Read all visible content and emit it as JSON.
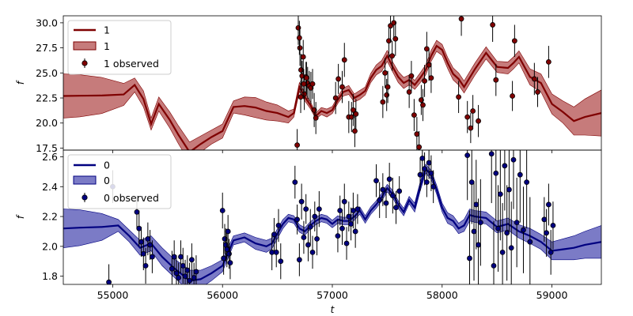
{
  "colors": {
    "top_line": "#7f0000",
    "top_band": "#b85a5a",
    "bottom_line": "#000080",
    "bottom_band": "#5a5ab8",
    "point_edge": "#000000",
    "errorbar": "#000000"
  },
  "chart_data": [
    {
      "type": "line",
      "panel": "top",
      "xlabel": "",
      "ylabel": "f",
      "xlim": [
        54550,
        59450
      ],
      "ylim": [
        17.3,
        30.7
      ],
      "yticks": [
        17.5,
        20.0,
        22.5,
        25.0,
        27.5,
        30.0
      ],
      "ytick_labels": [
        "17.5",
        "20.0",
        "22.5",
        "25.0",
        "27.5",
        "30.0"
      ],
      "legend": {
        "position": "top-left",
        "entries": [
          {
            "kind": "line",
            "label": "1"
          },
          {
            "kind": "band",
            "label": "1"
          },
          {
            "kind": "errorbar",
            "label": "1 observed"
          }
        ]
      },
      "model": {
        "t": [
          54550,
          54700,
          54900,
          55100,
          55200,
          55280,
          55350,
          55420,
          55520,
          55600,
          55700,
          55800,
          55900,
          56000,
          56100,
          56200,
          56300,
          56400,
          56500,
          56600,
          56650,
          56700,
          56750,
          56800,
          56850,
          56900,
          56950,
          57000,
          57050,
          57100,
          57150,
          57200,
          57250,
          57300,
          57350,
          57400,
          57450,
          57500,
          57550,
          57600,
          57650,
          57700,
          57750,
          57800,
          57850,
          57900,
          57950,
          58000,
          58050,
          58100,
          58150,
          58200,
          58300,
          58400,
          58500,
          58600,
          58650,
          58700,
          58800,
          58900,
          59000,
          59100,
          59200,
          59300,
          59450
        ],
        "mean": [
          22.7,
          22.72,
          22.75,
          22.85,
          23.8,
          22.4,
          19.9,
          21.9,
          20.3,
          18.8,
          17.1,
          17.9,
          18.6,
          19.2,
          21.6,
          21.7,
          21.55,
          21.2,
          21.0,
          20.6,
          21.0,
          23.6,
          22.6,
          21.8,
          20.7,
          21.2,
          21.0,
          21.3,
          22.3,
          23.1,
          23.3,
          22.5,
          22.8,
          23.2,
          24.5,
          25.3,
          25.7,
          26.7,
          25.6,
          24.6,
          24.0,
          24.3,
          23.8,
          24.5,
          25.3,
          26.7,
          27.7,
          27.3,
          26.0,
          24.9,
          24.4,
          23.6,
          25.4,
          27.0,
          25.6,
          25.5,
          26.0,
          26.6,
          24.6,
          24.0,
          21.9,
          21.1,
          20.2,
          20.6,
          21.0
        ],
        "sigma": [
          2.2,
          2.1,
          1.8,
          1.1,
          0.7,
          0.8,
          0.6,
          0.7,
          0.8,
          0.9,
          1.0,
          0.8,
          0.7,
          0.7,
          0.6,
          0.9,
          1.0,
          0.9,
          0.8,
          0.6,
          0.4,
          0.45,
          0.4,
          0.35,
          0.3,
          0.35,
          0.4,
          0.35,
          0.35,
          0.4,
          0.45,
          0.4,
          0.45,
          0.4,
          0.45,
          0.5,
          0.55,
          0.55,
          0.5,
          0.55,
          0.55,
          0.5,
          0.45,
          0.5,
          0.5,
          0.55,
          0.55,
          0.55,
          0.55,
          0.6,
          0.6,
          0.6,
          0.6,
          0.6,
          0.55,
          0.6,
          0.6,
          0.6,
          0.8,
          0.9,
          1.0,
          1.1,
          1.4,
          1.8,
          2.3
        ]
      },
      "observed": {
        "t": [
          56680,
          56690,
          56705,
          56715,
          56725,
          56735,
          56745,
          56760,
          56775,
          56790,
          56805,
          56820,
          56835,
          56850,
          56700,
          56712,
          56740,
          56765,
          57030,
          57055,
          57090,
          57110,
          57150,
          57175,
          57190,
          57205,
          57215,
          57460,
          57480,
          57495,
          57505,
          57515,
          57530,
          57545,
          57560,
          57575,
          57700,
          57720,
          57745,
          57770,
          57790,
          57810,
          57825,
          57840,
          57860,
          57880,
          57900,
          58150,
          58175,
          58230,
          58260,
          58280,
          58330,
          58460,
          58490,
          58640,
          58660,
          58840,
          58870,
          58970
        ],
        "f": [
          17.8,
          29.5,
          27.5,
          25.3,
          24.7,
          26.6,
          22.9,
          24.6,
          24.0,
          23.7,
          23.5,
          23.9,
          21.3,
          20.5,
          28.5,
          22.6,
          23.9,
          24.5,
          22.5,
          24.4,
          23.6,
          26.3,
          20.6,
          20.6,
          21.3,
          19.2,
          20.9,
          22.1,
          25.0,
          22.8,
          23.6,
          28.2,
          29.7,
          26.7,
          30.0,
          28.4,
          23.1,
          24.7,
          20.8,
          18.9,
          17.6,
          22.3,
          21.8,
          24.2,
          27.4,
          25.8,
          24.5,
          22.6,
          30.4,
          20.6,
          19.5,
          21.2,
          20.2,
          29.8,
          24.3,
          22.7,
          28.2,
          24.4,
          23.1,
          26.1
        ],
        "err": [
          1.6,
          1.7,
          1.8,
          1.6,
          1.5,
          1.7,
          1.6,
          1.5,
          1.6,
          1.5,
          1.6,
          1.5,
          1.7,
          1.6,
          1.7,
          1.6,
          1.5,
          1.6,
          1.6,
          1.5,
          1.6,
          1.7,
          1.6,
          1.5,
          1.6,
          1.6,
          1.5,
          1.6,
          1.5,
          1.6,
          1.6,
          1.7,
          1.6,
          1.5,
          1.6,
          1.7,
          1.6,
          1.5,
          1.6,
          1.7,
          1.6,
          1.5,
          1.6,
          1.6,
          1.7,
          1.6,
          1.5,
          1.6,
          1.7,
          1.6,
          1.5,
          1.6,
          1.6,
          1.7,
          1.6,
          1.5,
          1.6,
          1.6,
          1.5,
          1.6
        ]
      }
    },
    {
      "type": "line",
      "panel": "bottom",
      "xlabel": "t",
      "ylabel": "f",
      "xlim": [
        54550,
        59450
      ],
      "ylim": [
        1.745,
        2.645
      ],
      "yticks": [
        1.8,
        2.0,
        2.2,
        2.4,
        2.6
      ],
      "ytick_labels": [
        "1.8",
        "2.0",
        "2.2",
        "2.4",
        "2.6"
      ],
      "xticks": [
        55000,
        56000,
        57000,
        58000,
        59000
      ],
      "xtick_labels": [
        "55000",
        "56000",
        "57000",
        "58000",
        "59000"
      ],
      "legend": {
        "position": "top-left",
        "entries": [
          {
            "kind": "line",
            "label": "0"
          },
          {
            "kind": "band",
            "label": "0"
          },
          {
            "kind": "errorbar",
            "label": "0 observed"
          }
        ]
      },
      "model": {
        "t": [
          54550,
          54700,
          54900,
          55050,
          55150,
          55250,
          55350,
          55450,
          55550,
          55650,
          55700,
          55800,
          55900,
          56000,
          56100,
          56200,
          56300,
          56400,
          56450,
          56550,
          56600,
          56650,
          56700,
          56750,
          56800,
          56850,
          56900,
          56950,
          57000,
          57050,
          57100,
          57150,
          57200,
          57250,
          57300,
          57350,
          57400,
          57450,
          57500,
          57550,
          57600,
          57650,
          57700,
          57750,
          57800,
          57850,
          57900,
          57950,
          58000,
          58050,
          58100,
          58150,
          58200,
          58250,
          58300,
          58400,
          58500,
          58600,
          58700,
          58800,
          58900,
          59000,
          59100,
          59200,
          59300,
          59450
        ],
        "mean": [
          2.12,
          2.125,
          2.13,
          2.14,
          2.07,
          1.99,
          2.02,
          1.93,
          1.86,
          1.8,
          1.77,
          1.78,
          1.82,
          1.87,
          2.04,
          2.06,
          2.02,
          2.0,
          2.02,
          2.15,
          2.19,
          2.18,
          2.12,
          2.1,
          2.14,
          2.17,
          2.19,
          2.18,
          2.15,
          2.18,
          2.17,
          2.17,
          2.2,
          2.24,
          2.18,
          2.24,
          2.28,
          2.33,
          2.39,
          2.35,
          2.28,
          2.23,
          2.31,
          2.26,
          2.4,
          2.52,
          2.48,
          2.38,
          2.26,
          2.19,
          2.17,
          2.12,
          2.14,
          2.21,
          2.2,
          2.19,
          2.13,
          2.15,
          2.1,
          2.07,
          2.03,
          1.97,
          1.98,
          1.99,
          2.01,
          2.03
        ],
        "sigma": [
          0.13,
          0.12,
          0.09,
          0.04,
          0.04,
          0.05,
          0.05,
          0.06,
          0.06,
          0.07,
          0.07,
          0.06,
          0.05,
          0.04,
          0.03,
          0.03,
          0.04,
          0.04,
          0.035,
          0.03,
          0.025,
          0.025,
          0.025,
          0.025,
          0.025,
          0.025,
          0.025,
          0.025,
          0.025,
          0.025,
          0.025,
          0.025,
          0.025,
          0.025,
          0.025,
          0.025,
          0.025,
          0.025,
          0.025,
          0.025,
          0.025,
          0.025,
          0.025,
          0.03,
          0.03,
          0.03,
          0.03,
          0.03,
          0.03,
          0.035,
          0.035,
          0.035,
          0.04,
          0.04,
          0.04,
          0.04,
          0.04,
          0.04,
          0.045,
          0.05,
          0.05,
          0.06,
          0.07,
          0.08,
          0.09,
          0.11
        ]
      },
      "observed": {
        "t": [
          55000,
          54965,
          55220,
          55240,
          55260,
          55280,
          55300,
          55320,
          55340,
          55360,
          55540,
          55560,
          55580,
          55600,
          55620,
          55640,
          55660,
          55680,
          55700,
          55720,
          55740,
          55760,
          56000,
          56010,
          56020,
          56030,
          56040,
          56050,
          56060,
          56070,
          56450,
          56470,
          56490,
          56510,
          56530,
          56660,
          56680,
          56700,
          56720,
          56740,
          56760,
          56780,
          56800,
          56820,
          56840,
          56860,
          56880,
          57050,
          57070,
          57090,
          57110,
          57130,
          57150,
          57170,
          57190,
          57210,
          57230,
          57400,
          57430,
          57460,
          57490,
          57520,
          57550,
          57580,
          57610,
          57800,
          57820,
          57840,
          57860,
          57880,
          57900,
          57920,
          58230,
          58250,
          58270,
          58290,
          58310,
          58330,
          58350,
          58450,
          58470,
          58490,
          58510,
          58530,
          58550,
          58570,
          58590,
          58610,
          58630,
          58650,
          58680,
          58710,
          58740,
          58770,
          58800,
          58930,
          58950,
          58970,
          58990,
          59010
        ],
        "f": [
          2.4,
          1.76,
          2.23,
          2.12,
          2.03,
          1.95,
          1.87,
          2.05,
          2.01,
          1.93,
          1.85,
          1.93,
          1.82,
          1.79,
          1.93,
          1.87,
          1.8,
          1.84,
          1.77,
          1.91,
          1.79,
          1.83,
          2.24,
          1.92,
          2.05,
          2.01,
          1.98,
          2.1,
          1.95,
          1.89,
          1.96,
          2.08,
          1.96,
          2.14,
          1.9,
          2.43,
          2.18,
          1.91,
          2.3,
          2.06,
          2.25,
          2.01,
          2.13,
          1.96,
          2.2,
          2.05,
          2.25,
          2.07,
          2.24,
          2.12,
          2.3,
          2.02,
          2.2,
          2.15,
          2.24,
          2.1,
          2.25,
          2.44,
          2.31,
          2.38,
          2.29,
          2.45,
          2.34,
          2.26,
          2.37,
          2.48,
          2.59,
          2.52,
          2.43,
          2.56,
          2.49,
          2.4,
          2.61,
          1.92,
          2.43,
          2.1,
          2.28,
          2.01,
          2.16,
          2.62,
          1.87,
          2.49,
          2.12,
          2.35,
          1.96,
          2.54,
          2.09,
          2.38,
          1.99,
          2.58,
          2.16,
          2.48,
          2.11,
          2.43,
          2.03,
          2.18,
          2.09,
          2.28,
          1.96,
          2.14
        ],
        "err": [
          0.11,
          0.12,
          0.11,
          0.12,
          0.1,
          0.11,
          0.12,
          0.11,
          0.1,
          0.11,
          0.12,
          0.11,
          0.12,
          0.1,
          0.11,
          0.12,
          0.11,
          0.1,
          0.12,
          0.11,
          0.1,
          0.11,
          0.12,
          0.11,
          0.1,
          0.11,
          0.12,
          0.11,
          0.1,
          0.11,
          0.12,
          0.11,
          0.1,
          0.11,
          0.12,
          0.11,
          0.1,
          0.11,
          0.12,
          0.11,
          0.1,
          0.11,
          0.12,
          0.11,
          0.1,
          0.11,
          0.12,
          0.11,
          0.1,
          0.11,
          0.12,
          0.11,
          0.1,
          0.11,
          0.12,
          0.11,
          0.1,
          0.11,
          0.12,
          0.11,
          0.1,
          0.11,
          0.12,
          0.11,
          0.1,
          0.11,
          0.12,
          0.11,
          0.1,
          0.11,
          0.12,
          0.11,
          0.3,
          0.32,
          0.28,
          0.33,
          0.3,
          0.31,
          0.29,
          0.33,
          0.3,
          0.32,
          0.29,
          0.31,
          0.33,
          0.3,
          0.32,
          0.29,
          0.31,
          0.33,
          0.3,
          0.32,
          0.29,
          0.31,
          0.3,
          0.15,
          0.16,
          0.14,
          0.15,
          0.16
        ]
      }
    }
  ]
}
